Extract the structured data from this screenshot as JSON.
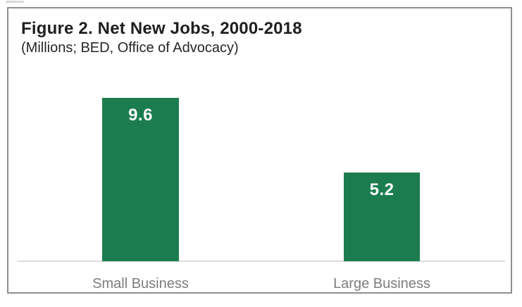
{
  "figure": {
    "title": "Figure 2. Net New Jobs, 2000-2018",
    "subtitle": "(Millions; BED, Office of Advocacy)"
  },
  "chart_data": {
    "type": "bar",
    "title": "Figure 2. Net New Jobs, 2000-2018",
    "subtitle": "(Millions; BED, Office of Advocacy)",
    "categories": [
      "Small Business",
      "Large Business"
    ],
    "values": [
      9.6,
      5.2
    ],
    "data_labels": [
      "9.6",
      "5.2"
    ],
    "xlabel": "",
    "ylabel": "",
    "ylim": [
      0,
      10
    ],
    "grid": false,
    "legend": "none",
    "colors": {
      "bar": "#1b7d4f",
      "bar_value_text": "#ffffff",
      "category_text": "#7d7d7d",
      "baseline": "#dcdcdc",
      "frame_border": "#8f8f8f",
      "title_text": "#1f1f1f"
    }
  }
}
